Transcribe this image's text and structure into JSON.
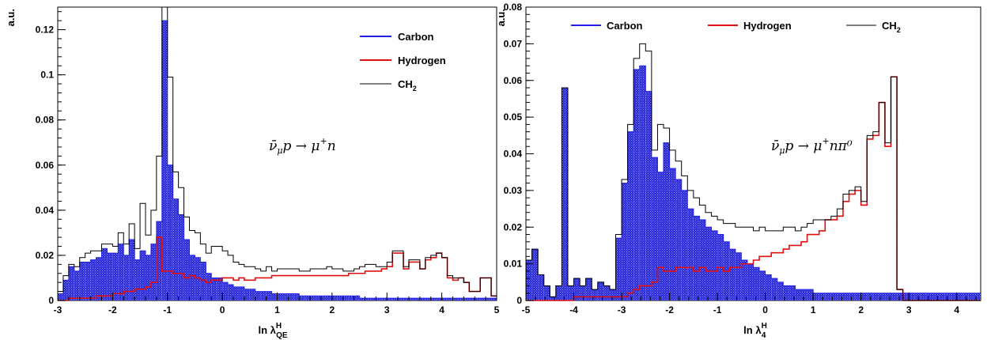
{
  "colors": {
    "carbon": "#1f1fe6",
    "carbon_fill": "#3b3bdc",
    "hydrogen": "#e01010",
    "ch2": "#000000"
  },
  "chart_data": [
    {
      "type": "histogram",
      "ylabel": "a.u.",
      "xlabel": {
        "main": "ln λ",
        "sup": "H",
        "sub": "QE"
      },
      "xlim": [
        -3,
        5
      ],
      "ylim": [
        0,
        0.13
      ],
      "x_ticks": [
        "-3",
        "-2",
        "-1",
        "0",
        "1",
        "2",
        "3",
        "4",
        "5"
      ],
      "y_ticks": [
        "0",
        "0.02",
        "0.04",
        "0.06",
        "0.08",
        "0.1",
        "0.12"
      ],
      "y_tick_values": [
        0,
        0.02,
        0.04,
        0.06,
        0.08,
        0.1,
        0.12
      ],
      "bin_width": 0.1,
      "x_start": -3.0,
      "annotation": {
        "base": "ν̄",
        "sub": "μ",
        "mid": "p → μ",
        "sup": "+",
        "tail": "n"
      },
      "legend": [
        "Carbon",
        "Hydrogen",
        "CH2"
      ],
      "legend_display": [
        {
          "name": "Carbon",
          "text": "Carbon",
          "sub": ""
        },
        {
          "name": "Hydrogen",
          "text": "Hydrogen",
          "sub": ""
        },
        {
          "name": "CH2",
          "text": "CH",
          "sub": "2"
        }
      ],
      "series": [
        {
          "name": "Carbon",
          "style": "hatched-fill",
          "values": [
            0.003,
            0.009,
            0.015,
            0.013,
            0.017,
            0.017,
            0.018,
            0.019,
            0.023,
            0.021,
            0.021,
            0.025,
            0.02,
            0.027,
            0.018,
            0.022,
            0.02,
            0.025,
            0.035,
            0.124,
            0.06,
            0.045,
            0.038,
            0.027,
            0.02,
            0.019,
            0.017,
            0.012,
            0.01,
            0.01,
            0.008,
            0.007,
            0.006,
            0.006,
            0.005,
            0.005,
            0.004,
            0.004,
            0.004,
            0.003,
            0.003,
            0.003,
            0.003,
            0.003,
            0.002,
            0.002,
            0.002,
            0.002,
            0.002,
            0.002,
            0.002,
            0.002,
            0.002,
            0.002,
            0.002,
            0.001,
            0.001,
            0.001,
            0.001,
            0.001,
            0.001,
            0.001,
            0.001,
            0.001,
            0.001,
            0.001,
            0.001,
            0.001,
            0.001,
            0.001,
            0.001,
            0.001,
            0.001,
            0.001,
            0.001,
            0.001,
            0.001,
            0.001,
            0.001,
            0.001
          ]
        },
        {
          "name": "Hydrogen",
          "style": "line",
          "values": [
            0.0,
            0.0,
            0.001,
            0.001,
            0.001,
            0.001,
            0.001,
            0.002,
            0.002,
            0.002,
            0.003,
            0.003,
            0.004,
            0.004,
            0.005,
            0.005,
            0.006,
            0.008,
            0.028,
            0.013,
            0.013,
            0.012,
            0.012,
            0.01,
            0.011,
            0.01,
            0.009,
            0.008,
            0.009,
            0.009,
            0.01,
            0.01,
            0.009,
            0.01,
            0.009,
            0.009,
            0.01,
            0.01,
            0.01,
            0.011,
            0.011,
            0.011,
            0.011,
            0.011,
            0.011,
            0.011,
            0.011,
            0.011,
            0.011,
            0.011,
            0.011,
            0.011,
            0.011,
            0.012,
            0.012,
            0.012,
            0.013,
            0.013,
            0.013,
            0.014,
            0.015,
            0.021,
            0.021,
            0.014,
            0.017,
            0.017,
            0.014,
            0.018,
            0.019,
            0.021,
            0.019,
            0.01,
            0.009,
            0.01,
            0.008,
            0.004,
            0.004,
            0.01,
            0.01,
            0.002
          ]
        },
        {
          "name": "CH2",
          "style": "line",
          "values": [
            0.004,
            0.011,
            0.016,
            0.015,
            0.019,
            0.021,
            0.022,
            0.022,
            0.025,
            0.025,
            0.024,
            0.03,
            0.025,
            0.034,
            0.023,
            0.043,
            0.029,
            0.04,
            0.064,
            0.13,
            0.099,
            0.057,
            0.05,
            0.037,
            0.031,
            0.03,
            0.025,
            0.021,
            0.024,
            0.024,
            0.022,
            0.02,
            0.017,
            0.016,
            0.015,
            0.015,
            0.014,
            0.013,
            0.015,
            0.013,
            0.014,
            0.014,
            0.014,
            0.014,
            0.013,
            0.013,
            0.014,
            0.014,
            0.014,
            0.015,
            0.014,
            0.014,
            0.013,
            0.013,
            0.014,
            0.015,
            0.016,
            0.016,
            0.015,
            0.015,
            0.017,
            0.022,
            0.022,
            0.015,
            0.018,
            0.018,
            0.014,
            0.019,
            0.02,
            0.021,
            0.019,
            0.011,
            0.01,
            0.01,
            0.008,
            0.004,
            0.004,
            0.01,
            0.01,
            0.002
          ]
        }
      ]
    },
    {
      "type": "histogram",
      "ylabel": "a.u.",
      "xlabel": {
        "main": "ln λ",
        "sup": "H",
        "sub": "4"
      },
      "xlim": [
        -5,
        4.5
      ],
      "ylim": [
        0,
        0.08
      ],
      "x_ticks": [
        "-5",
        "-4",
        "-3",
        "-2",
        "-1",
        "0",
        "1",
        "2",
        "3",
        "4"
      ],
      "y_ticks": [
        "0",
        "0.01",
        "0.02",
        "0.03",
        "0.04",
        "0.05",
        "0.06",
        "0.07",
        "0.08"
      ],
      "y_tick_values": [
        0,
        0.01,
        0.02,
        0.03,
        0.04,
        0.05,
        0.06,
        0.07,
        0.08
      ],
      "bin_width": 0.125,
      "x_start": -5.0,
      "annotation": {
        "base": "ν̄",
        "sub": "μ",
        "mid": "p → μ",
        "sup": "+",
        "tail": "nπ⁰"
      },
      "legend": [
        "Carbon",
        "Hydrogen",
        "CH2"
      ],
      "legend_display": [
        {
          "name": "Carbon",
          "text": "Carbon",
          "sub": ""
        },
        {
          "name": "Hydrogen",
          "text": "Hydrogen",
          "sub": ""
        },
        {
          "name": "CH2",
          "text": "CH",
          "sub": "2"
        }
      ],
      "series": [
        {
          "name": "Carbon",
          "style": "hatched-fill",
          "values": [
            0.011,
            0.014,
            0.007,
            0.004,
            0.001,
            0.004,
            0.058,
            0.004,
            0.006,
            0.004,
            0.006,
            0.003,
            0.005,
            0.004,
            0.003,
            0.017,
            0.032,
            0.046,
            0.063,
            0.064,
            0.057,
            0.039,
            0.035,
            0.043,
            0.036,
            0.033,
            0.03,
            0.025,
            0.023,
            0.022,
            0.02,
            0.019,
            0.018,
            0.016,
            0.014,
            0.013,
            0.011,
            0.01,
            0.009,
            0.008,
            0.007,
            0.006,
            0.005,
            0.004,
            0.004,
            0.003,
            0.003,
            0.003,
            0.002,
            0.002,
            0.002,
            0.002,
            0.002,
            0.002,
            0.002,
            0.002,
            0.002,
            0.002,
            0.002,
            0.002,
            0.002,
            0.002,
            0.002,
            0.002,
            0.002,
            0.002,
            0.002,
            0.002,
            0.002,
            0.002,
            0.002,
            0.002,
            0.002,
            0.002,
            0.002,
            0.002
          ]
        },
        {
          "name": "Hydrogen",
          "style": "line",
          "values": [
            0.0,
            0.0,
            0.0,
            0.0,
            0.0,
            0.0,
            0.0,
            0.0,
            0.001,
            0.001,
            0.001,
            0.001,
            0.001,
            0.001,
            0.001,
            0.001,
            0.001,
            0.002,
            0.003,
            0.004,
            0.004,
            0.005,
            0.009,
            0.008,
            0.008,
            0.009,
            0.009,
            0.009,
            0.008,
            0.009,
            0.008,
            0.008,
            0.009,
            0.008,
            0.009,
            0.009,
            0.01,
            0.01,
            0.011,
            0.012,
            0.012,
            0.013,
            0.013,
            0.014,
            0.015,
            0.015,
            0.016,
            0.018,
            0.018,
            0.019,
            0.022,
            0.022,
            0.023,
            0.027,
            0.029,
            0.03,
            0.026,
            0.044,
            0.045,
            0.054,
            0.042,
            0.061,
            0.003,
            0.0,
            0.0,
            0.0,
            0.0,
            0.0,
            0.0,
            0.0,
            0.0,
            0.0,
            0.0,
            0.0,
            0.0,
            0.0
          ]
        },
        {
          "name": "CH2",
          "style": "line",
          "values": [
            0.011,
            0.014,
            0.007,
            0.004,
            0.001,
            0.004,
            0.058,
            0.004,
            0.006,
            0.004,
            0.006,
            0.003,
            0.005,
            0.004,
            0.003,
            0.018,
            0.033,
            0.048,
            0.066,
            0.07,
            0.068,
            0.041,
            0.048,
            0.047,
            0.041,
            0.038,
            0.034,
            0.03,
            0.028,
            0.026,
            0.024,
            0.023,
            0.022,
            0.021,
            0.021,
            0.02,
            0.02,
            0.02,
            0.019,
            0.02,
            0.019,
            0.019,
            0.019,
            0.02,
            0.02,
            0.019,
            0.02,
            0.021,
            0.022,
            0.022,
            0.022,
            0.023,
            0.025,
            0.029,
            0.03,
            0.031,
            0.027,
            0.045,
            0.046,
            0.054,
            0.043,
            0.061,
            0.003,
            0.0,
            0.0,
            0.0,
            0.0,
            0.0,
            0.0,
            0.0,
            0.0,
            0.0,
            0.0,
            0.0,
            0.0,
            0.0
          ]
        }
      ]
    }
  ]
}
